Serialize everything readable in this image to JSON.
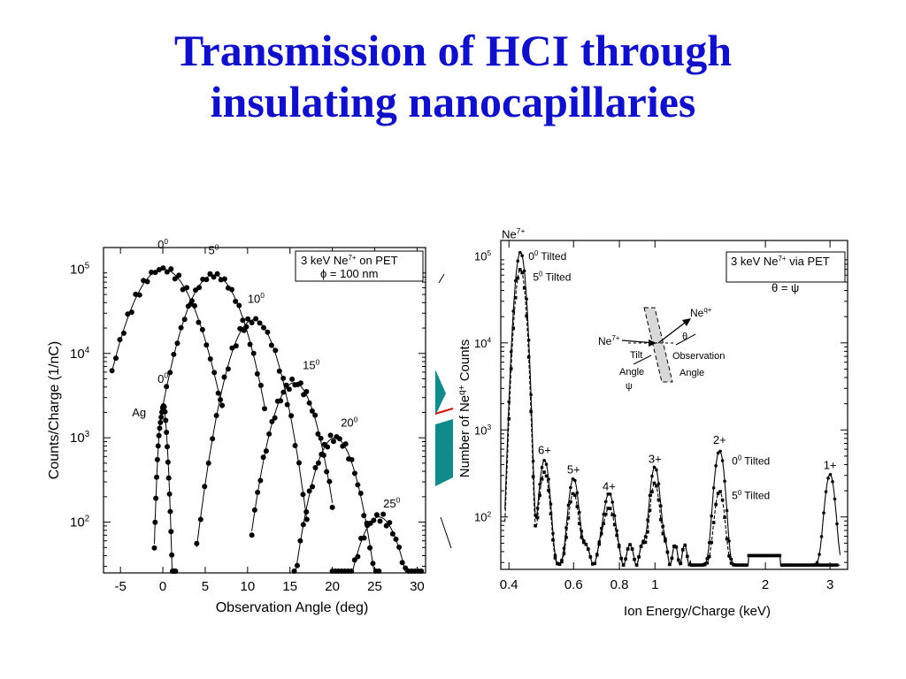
{
  "slide": {
    "title_line1": "Transmission of HCI through",
    "title_line2": "insulating nanocapillaries",
    "title_color": "#1010c8"
  },
  "chart_data": [
    {
      "type": "scatter",
      "xlabel": "Observation Angle (deg)",
      "ylabel": "Counts/Charge (1/nC)",
      "yscale": "log",
      "xlim": [
        -7,
        31
      ],
      "ylim": [
        25,
        180000
      ],
      "xticks": [
        -5,
        0,
        5,
        10,
        15,
        20,
        25,
        30
      ],
      "yticks": [
        {
          "base": "10",
          "exp": "5",
          "value": 100000
        },
        {
          "base": "10",
          "exp": "4",
          "value": 10000
        },
        {
          "base": "10",
          "exp": "3",
          "value": 1000
        },
        {
          "base": "10",
          "exp": "2",
          "value": 100
        }
      ],
      "legend_box": {
        "line1_pre": "3 keV Ne",
        "line1_sup": "7+",
        "line1_post": " on PET",
        "line2": "ϕ = 100 nm"
      },
      "series": [
        {
          "label": "0",
          "sup": "0",
          "center": 0,
          "peak": 100000,
          "width": 5.2,
          "xmin": -6,
          "xmax": 7,
          "label_x": 0,
          "label_y": 175000
        },
        {
          "label": "5",
          "sup": "0",
          "center": 6,
          "peak": 85000,
          "width": 4.6,
          "xmin": 0,
          "xmax": 12,
          "label_x": 6,
          "label_y": 150000
        },
        {
          "label": "10",
          "sup": "0",
          "center": 10.7,
          "peak": 25000,
          "width": 3.9,
          "xmin": 4,
          "xmax": 17,
          "label_x": 11,
          "label_y": 40000
        },
        {
          "label": "15",
          "sup": "0",
          "center": 15.5,
          "peak": 4500,
          "width": 3.6,
          "xmin": 10.5,
          "xmax": 20,
          "label_x": 17.5,
          "label_y": 6500
        },
        {
          "label": "20",
          "sup": "0",
          "center": 20.3,
          "peak": 1000,
          "width": 3.5,
          "xmin": 15.5,
          "xmax": 25.5,
          "label_x": 22,
          "label_y": 1350
        },
        {
          "label": "25",
          "sup": "0",
          "center": 25.5,
          "peak": 115,
          "width": 3.7,
          "xmin": 20,
          "xmax": 30.5,
          "label_x": 27,
          "label_y": 150
        },
        {
          "label": "0",
          "sup": "0",
          "center": 0,
          "peak": 2300,
          "width": 0.75,
          "xmin": -1,
          "xmax": 1.5,
          "label_x": 0,
          "label_y": 4500
        }
      ],
      "annotations": [
        {
          "text": "Ag",
          "x": -2.8,
          "y": 1800
        }
      ]
    },
    {
      "type": "line",
      "xlabel": "Ion Energy/Charge (keV)",
      "ylabel_pre": "Number of Ne",
      "ylabel_sup": "q+",
      "ylabel_post": " Counts",
      "xscale": "log",
      "yscale": "log",
      "xlim": [
        0.38,
        3.35
      ],
      "ylim": [
        25,
        150000
      ],
      "xticks": [
        "0.4",
        "0.6",
        "0.8",
        "1",
        "2",
        "3"
      ],
      "yticks": [
        {
          "base": "10",
          "exp": "5",
          "value": 100000
        },
        {
          "base": "10",
          "exp": "4",
          "value": 10000
        },
        {
          "base": "10",
          "exp": "3",
          "value": 1000
        },
        {
          "base": "10",
          "exp": "2",
          "value": 100
        }
      ],
      "legend_box": {
        "line1_pre": "3 keV Ne",
        "line1_sup": "7+",
        "line1_post": " via PET",
        "line2": "θ = ψ"
      },
      "peaks": [
        {
          "label": "Ne",
          "sup": "7+",
          "x": 0.43,
          "peak0": 110000,
          "peak5": 70000
        },
        {
          "label": "6+",
          "x": 0.5,
          "peak0": 420,
          "peak5": 300
        },
        {
          "label": "5+",
          "x": 0.6,
          "peak0": 250,
          "peak5": 160
        },
        {
          "label": "4+",
          "x": 0.75,
          "peak0": 160,
          "peak5": 100
        },
        {
          "label": "3+",
          "x": 1.0,
          "peak0": 330,
          "peak5": 200
        },
        {
          "label": "2+",
          "x": 1.5,
          "peak0": 550,
          "peak5": 170
        },
        {
          "label": "1+",
          "x": 3.0,
          "peak0": 280
        }
      ],
      "annotations": [
        {
          "text": "0",
          "sup": "0",
          "post": " Tilted",
          "x": 0.452,
          "y": 90000
        },
        {
          "text": "5",
          "sup": "0",
          "post": " Tilted",
          "x": 0.465,
          "y": 52000
        },
        {
          "text": "0",
          "sup": "0",
          "post": " Tilted",
          "x": 1.62,
          "y": 400
        },
        {
          "text": "5",
          "sup": "0",
          "post": " Tilted",
          "x": 1.62,
          "y": 160
        }
      ],
      "inset": {
        "incoming_pre": "Ne",
        "incoming_sup": "7+",
        "outgoing_pre": "Ne",
        "outgoing_sup": "q+",
        "tilt_line1": "Tilt",
        "tilt_line2": "Angle",
        "psi": "ψ",
        "theta": "θ",
        "obs_line1": "Observation",
        "obs_line2": "Angle"
      }
    }
  ]
}
